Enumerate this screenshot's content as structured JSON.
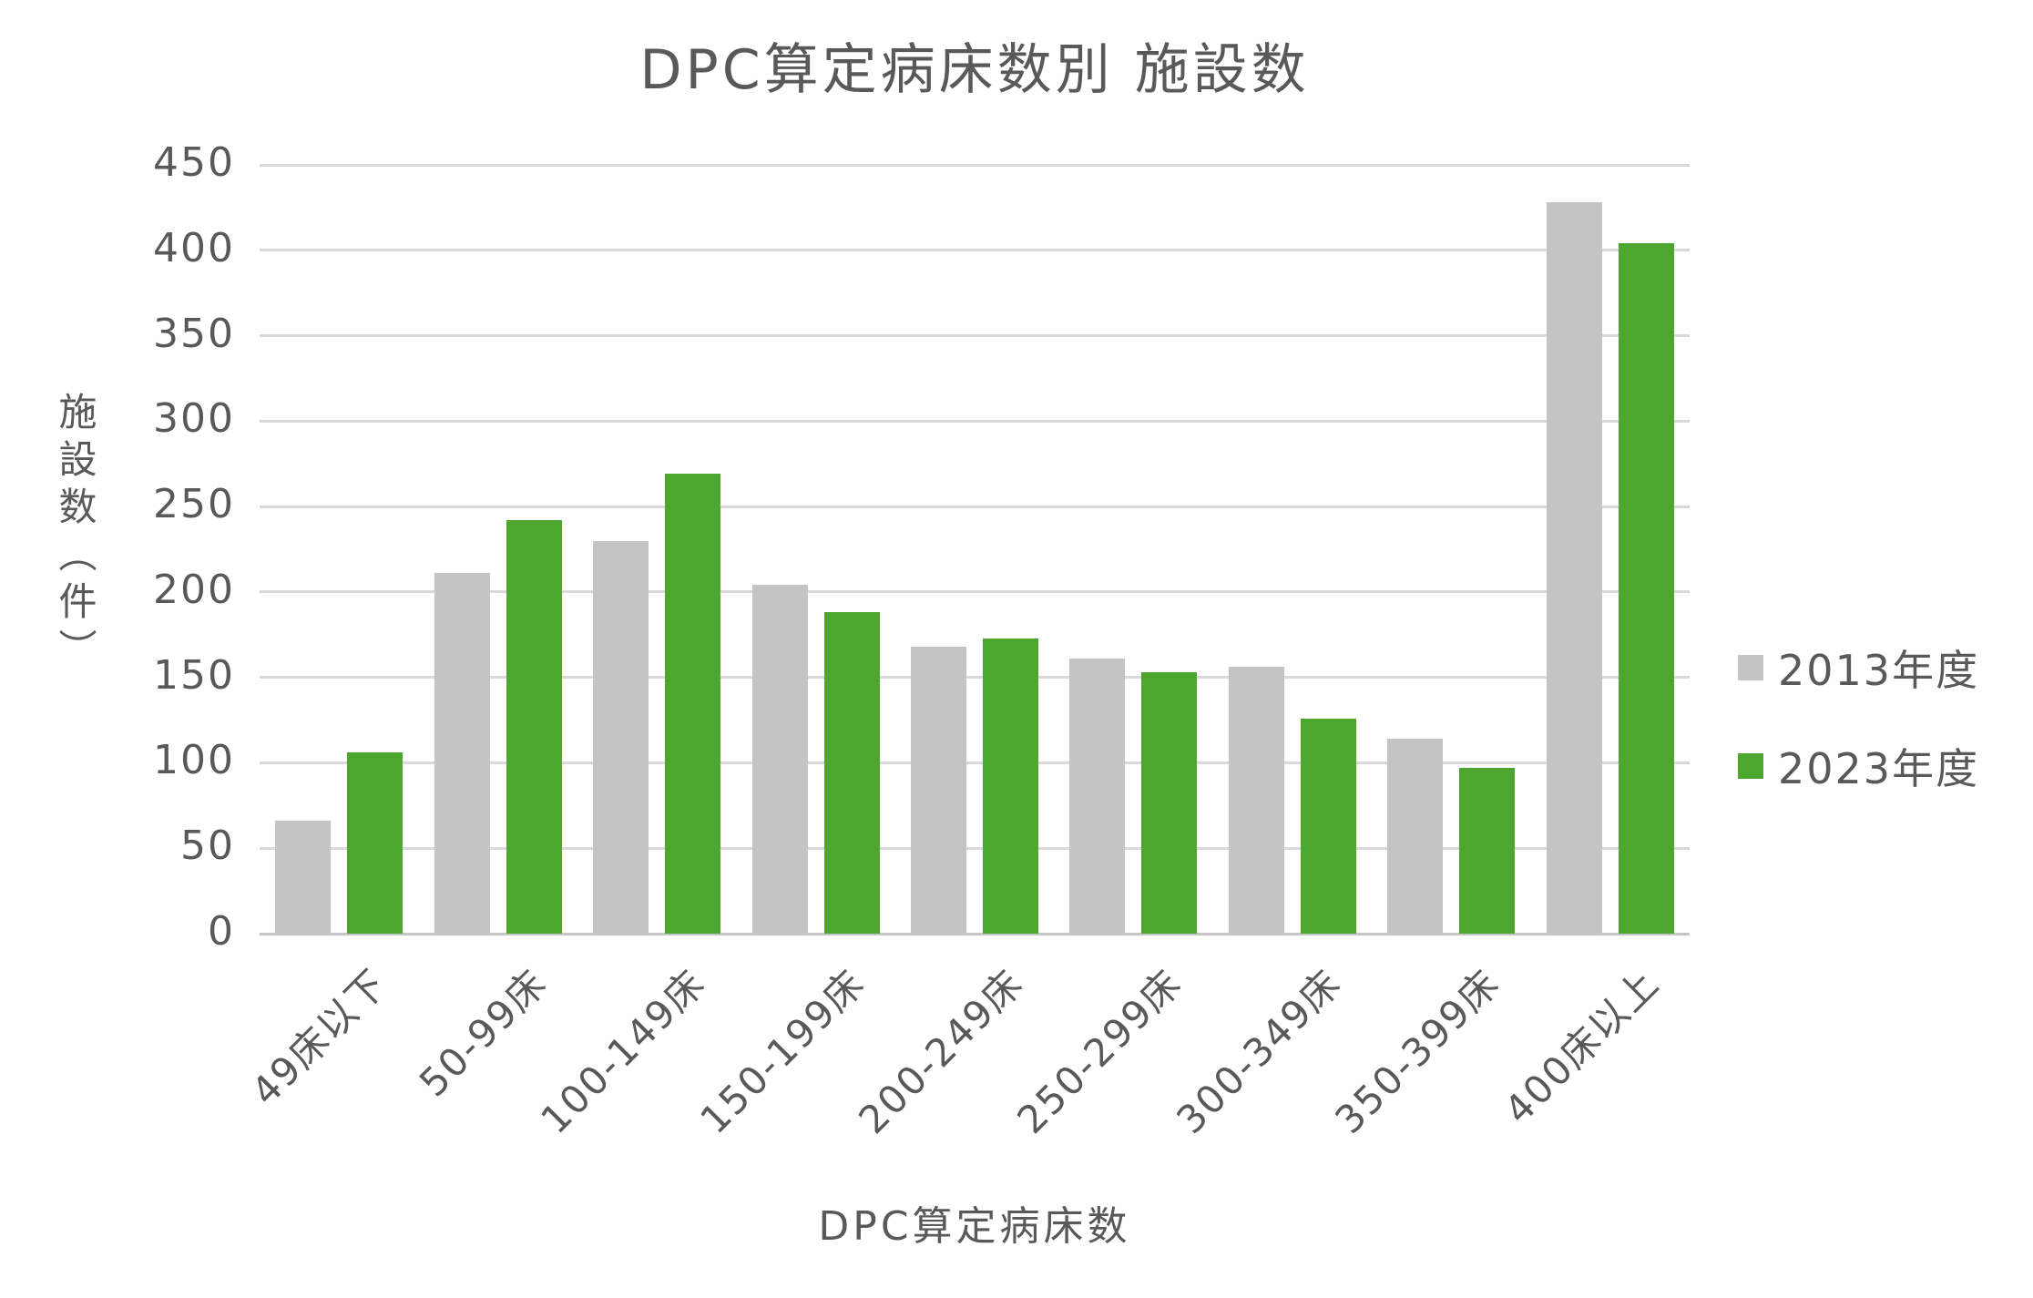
{
  "title": "DPC算定病床数別 施設数",
  "chart_data": {
    "type": "bar",
    "title": "DPC算定病床数別 施設数",
    "xlabel": "DPC算定病床数",
    "ylabel": "施設数（件）",
    "categories": [
      "49床以下",
      "50-99床",
      "100-149床",
      "150-199床",
      "200-249床",
      "250-299床",
      "300-349床",
      "350-399床",
      "400床以上"
    ],
    "series": [
      {
        "name": "2013年度",
        "color": "#c4c4c4",
        "values": [
          66,
          211,
          230,
          204,
          168,
          161,
          156,
          114,
          428
        ]
      },
      {
        "name": "2023年度",
        "color": "#4da62d",
        "values": [
          106,
          242,
          269,
          188,
          173,
          153,
          126,
          97,
          404
        ]
      }
    ],
    "ylim": [
      0,
      450
    ],
    "ytick_step": 50,
    "ytick_labels": [
      "0",
      "50",
      "100",
      "150",
      "200",
      "250",
      "300",
      "350",
      "400",
      "450"
    ],
    "grid": true,
    "legend_position": "right"
  },
  "colors": {
    "text": "#595959",
    "gridline": "#d9d9d9",
    "baseline": "#c6c6c6",
    "series_2013": "#c4c4c4",
    "series_2023": "#4da62d"
  }
}
